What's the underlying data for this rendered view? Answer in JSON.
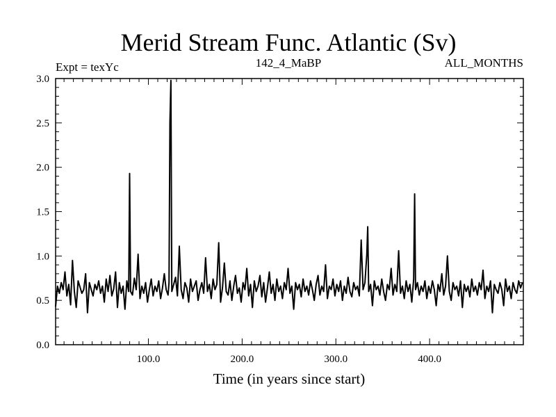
{
  "chart_data": {
    "type": "line",
    "title": "Merid Stream Func. Atlantic (Sv)",
    "subtitle_left": "Expt = texYc",
    "subtitle_center": "142_4_MaBP",
    "subtitle_right": "ALL_MONTHS",
    "xlabel": "Time (in years since start)",
    "ylabel": "",
    "xlim": [
      1,
      500
    ],
    "ylim": [
      0.0,
      3.0
    ],
    "xticks_labeled": [
      {
        "value": 100,
        "label": "100.0"
      },
      {
        "value": 200,
        "label": "200.0"
      },
      {
        "value": 300,
        "label": "300.0"
      },
      {
        "value": 400,
        "label": "400.0"
      }
    ],
    "yticks_labeled": [
      {
        "value": 0.0,
        "label": "0.0"
      },
      {
        "value": 0.5,
        "label": "0.5"
      },
      {
        "value": 1.0,
        "label": "1.0"
      },
      {
        "value": 1.5,
        "label": "1.5"
      },
      {
        "value": 2.0,
        "label": "2.0"
      },
      {
        "value": 2.5,
        "label": "2.5"
      },
      {
        "value": 3.0,
        "label": "3.0"
      }
    ],
    "x_minor_step": 10,
    "y_minor_step": 0.1,
    "grid": false,
    "line_color": "#000000",
    "series": [
      {
        "points": [
          [
            1,
            0.43
          ],
          [
            3,
            0.66
          ],
          [
            5,
            0.58
          ],
          [
            7,
            0.7
          ],
          [
            9,
            0.62
          ],
          [
            11,
            0.82
          ],
          [
            13,
            0.55
          ],
          [
            15,
            0.68
          ],
          [
            17,
            0.45
          ],
          [
            19,
            0.95
          ],
          [
            21,
            0.6
          ],
          [
            23,
            0.42
          ],
          [
            25,
            0.72
          ],
          [
            27,
            0.65
          ],
          [
            29,
            0.58
          ],
          [
            31,
            0.62
          ],
          [
            33,
            0.8
          ],
          [
            35,
            0.36
          ],
          [
            37,
            0.7
          ],
          [
            39,
            0.62
          ],
          [
            41,
            0.55
          ],
          [
            43,
            0.68
          ],
          [
            45,
            0.62
          ],
          [
            47,
            0.72
          ],
          [
            49,
            0.58
          ],
          [
            51,
            0.66
          ],
          [
            53,
            0.48
          ],
          [
            55,
            0.74
          ],
          [
            57,
            0.6
          ],
          [
            59,
            0.78
          ],
          [
            61,
            0.55
          ],
          [
            63,
            0.63
          ],
          [
            65,
            0.82
          ],
          [
            67,
            0.42
          ],
          [
            69,
            0.7
          ],
          [
            71,
            0.58
          ],
          [
            73,
            0.66
          ],
          [
            75,
            0.4
          ],
          [
            77,
            0.72
          ],
          [
            79,
            0.6
          ],
          [
            80,
            1.93
          ],
          [
            81,
            0.6
          ],
          [
            83,
            0.56
          ],
          [
            85,
            0.75
          ],
          [
            87,
            0.62
          ],
          [
            89,
            1.02
          ],
          [
            91,
            0.52
          ],
          [
            93,
            0.66
          ],
          [
            95,
            0.58
          ],
          [
            97,
            0.7
          ],
          [
            99,
            0.48
          ],
          [
            101,
            0.62
          ],
          [
            103,
            0.74
          ],
          [
            105,
            0.55
          ],
          [
            107,
            0.66
          ],
          [
            109,
            0.6
          ],
          [
            111,
            0.72
          ],
          [
            113,
            0.52
          ],
          [
            115,
            0.64
          ],
          [
            117,
            0.8
          ],
          [
            119,
            0.62
          ],
          [
            121,
            0.56
          ],
          [
            122,
            0.7
          ],
          [
            123,
            2.5
          ],
          [
            124,
            2.98
          ],
          [
            125,
            0.6
          ],
          [
            127,
            0.68
          ],
          [
            129,
            0.76
          ],
          [
            131,
            0.55
          ],
          [
            133,
            1.11
          ],
          [
            135,
            0.62
          ],
          [
            137,
            0.52
          ],
          [
            139,
            0.7
          ],
          [
            141,
            0.64
          ],
          [
            143,
            0.48
          ],
          [
            145,
            0.74
          ],
          [
            147,
            0.6
          ],
          [
            149,
            0.66
          ],
          [
            151,
            0.72
          ],
          [
            153,
            0.5
          ],
          [
            155,
            0.62
          ],
          [
            157,
            0.7
          ],
          [
            159,
            0.58
          ],
          [
            161,
            0.98
          ],
          [
            163,
            0.6
          ],
          [
            165,
            0.68
          ],
          [
            167,
            0.52
          ],
          [
            169,
            0.74
          ],
          [
            171,
            0.62
          ],
          [
            173,
            0.68
          ],
          [
            175,
            1.15
          ],
          [
            177,
            0.48
          ],
          [
            179,
            0.64
          ],
          [
            181,
            0.92
          ],
          [
            183,
            0.6
          ],
          [
            185,
            0.56
          ],
          [
            187,
            0.72
          ],
          [
            189,
            0.5
          ],
          [
            191,
            0.66
          ],
          [
            193,
            0.78
          ],
          [
            195,
            0.58
          ],
          [
            197,
            0.64
          ],
          [
            199,
            0.48
          ],
          [
            201,
            0.7
          ],
          [
            203,
            0.62
          ],
          [
            205,
            0.86
          ],
          [
            207,
            0.55
          ],
          [
            209,
            0.68
          ],
          [
            211,
            0.42
          ],
          [
            213,
            0.72
          ],
          [
            215,
            0.6
          ],
          [
            217,
            0.66
          ],
          [
            219,
            0.78
          ],
          [
            221,
            0.54
          ],
          [
            223,
            0.7
          ],
          [
            225,
            0.48
          ],
          [
            227,
            0.64
          ],
          [
            229,
            0.82
          ],
          [
            231,
            0.58
          ],
          [
            233,
            0.68
          ],
          [
            235,
            0.5
          ],
          [
            237,
            0.74
          ],
          [
            239,
            0.6
          ],
          [
            241,
            0.66
          ],
          [
            243,
            0.52
          ],
          [
            245,
            0.7
          ],
          [
            247,
            0.62
          ],
          [
            249,
            0.86
          ],
          [
            251,
            0.58
          ],
          [
            253,
            0.66
          ],
          [
            255,
            0.4
          ],
          [
            257,
            0.7
          ],
          [
            259,
            0.62
          ],
          [
            261,
            0.68
          ],
          [
            263,
            0.54
          ],
          [
            265,
            0.74
          ],
          [
            267,
            0.6
          ],
          [
            269,
            0.66
          ],
          [
            271,
            0.56
          ],
          [
            273,
            0.72
          ],
          [
            275,
            0.62
          ],
          [
            277,
            0.5
          ],
          [
            279,
            0.68
          ],
          [
            281,
            0.78
          ],
          [
            283,
            0.56
          ],
          [
            285,
            0.66
          ],
          [
            287,
            0.6
          ],
          [
            289,
            0.9
          ],
          [
            291,
            0.52
          ],
          [
            293,
            0.66
          ],
          [
            295,
            0.62
          ],
          [
            297,
            0.74
          ],
          [
            299,
            0.55
          ],
          [
            301,
            0.68
          ],
          [
            303,
            0.6
          ],
          [
            305,
            0.72
          ],
          [
            307,
            0.5
          ],
          [
            309,
            0.66
          ],
          [
            311,
            0.58
          ],
          [
            313,
            0.76
          ],
          [
            315,
            0.6
          ],
          [
            317,
            0.54
          ],
          [
            319,
            0.7
          ],
          [
            321,
            0.62
          ],
          [
            323,
            0.66
          ],
          [
            325,
            0.55
          ],
          [
            327,
            1.18
          ],
          [
            329,
            0.62
          ],
          [
            331,
            0.7
          ],
          [
            333,
            1.02
          ],
          [
            334,
            1.33
          ],
          [
            335,
            0.6
          ],
          [
            337,
            0.68
          ],
          [
            339,
            0.44
          ],
          [
            341,
            0.72
          ],
          [
            343,
            0.62
          ],
          [
            345,
            0.66
          ],
          [
            347,
            0.56
          ],
          [
            349,
            0.74
          ],
          [
            351,
            0.6
          ],
          [
            353,
            0.5
          ],
          [
            355,
            0.68
          ],
          [
            357,
            0.62
          ],
          [
            359,
            0.86
          ],
          [
            361,
            0.56
          ],
          [
            363,
            0.68
          ],
          [
            365,
            0.6
          ],
          [
            367,
            1.06
          ],
          [
            369,
            0.58
          ],
          [
            371,
            0.66
          ],
          [
            373,
            0.52
          ],
          [
            375,
            0.72
          ],
          [
            377,
            0.6
          ],
          [
            379,
            0.68
          ],
          [
            381,
            0.48
          ],
          [
            383,
            0.74
          ],
          [
            384,
            1.7
          ],
          [
            385,
            0.62
          ],
          [
            387,
            0.7
          ],
          [
            389,
            0.56
          ],
          [
            391,
            0.66
          ],
          [
            393,
            0.6
          ],
          [
            395,
            0.72
          ],
          [
            397,
            0.52
          ],
          [
            399,
            0.66
          ],
          [
            401,
            0.58
          ],
          [
            403,
            0.72
          ],
          [
            405,
            0.62
          ],
          [
            407,
            0.44
          ],
          [
            409,
            0.68
          ],
          [
            411,
            0.6
          ],
          [
            413,
            0.8
          ],
          [
            415,
            0.56
          ],
          [
            417,
            0.66
          ],
          [
            419,
            1.0
          ],
          [
            421,
            0.6
          ],
          [
            423,
            0.5
          ],
          [
            425,
            0.7
          ],
          [
            427,
            0.62
          ],
          [
            429,
            0.66
          ],
          [
            431,
            0.55
          ],
          [
            433,
            0.72
          ],
          [
            435,
            0.42
          ],
          [
            437,
            0.68
          ],
          [
            439,
            0.6
          ],
          [
            441,
            0.66
          ],
          [
            443,
            0.54
          ],
          [
            445,
            0.74
          ],
          [
            447,
            0.6
          ],
          [
            449,
            0.66
          ],
          [
            451,
            0.56
          ],
          [
            453,
            0.7
          ],
          [
            455,
            0.62
          ],
          [
            457,
            0.84
          ],
          [
            459,
            0.52
          ],
          [
            461,
            0.66
          ],
          [
            463,
            0.6
          ],
          [
            465,
            0.72
          ],
          [
            467,
            0.36
          ],
          [
            469,
            0.68
          ],
          [
            471,
            0.62
          ],
          [
            473,
            0.58
          ],
          [
            475,
            0.7
          ],
          [
            477,
            0.62
          ],
          [
            479,
            0.44
          ],
          [
            481,
            0.74
          ],
          [
            483,
            0.6
          ],
          [
            485,
            0.66
          ],
          [
            487,
            0.52
          ],
          [
            489,
            0.7
          ],
          [
            491,
            0.62
          ],
          [
            493,
            0.58
          ],
          [
            495,
            0.72
          ],
          [
            497,
            0.64
          ],
          [
            499,
            0.7
          ]
        ]
      }
    ]
  }
}
